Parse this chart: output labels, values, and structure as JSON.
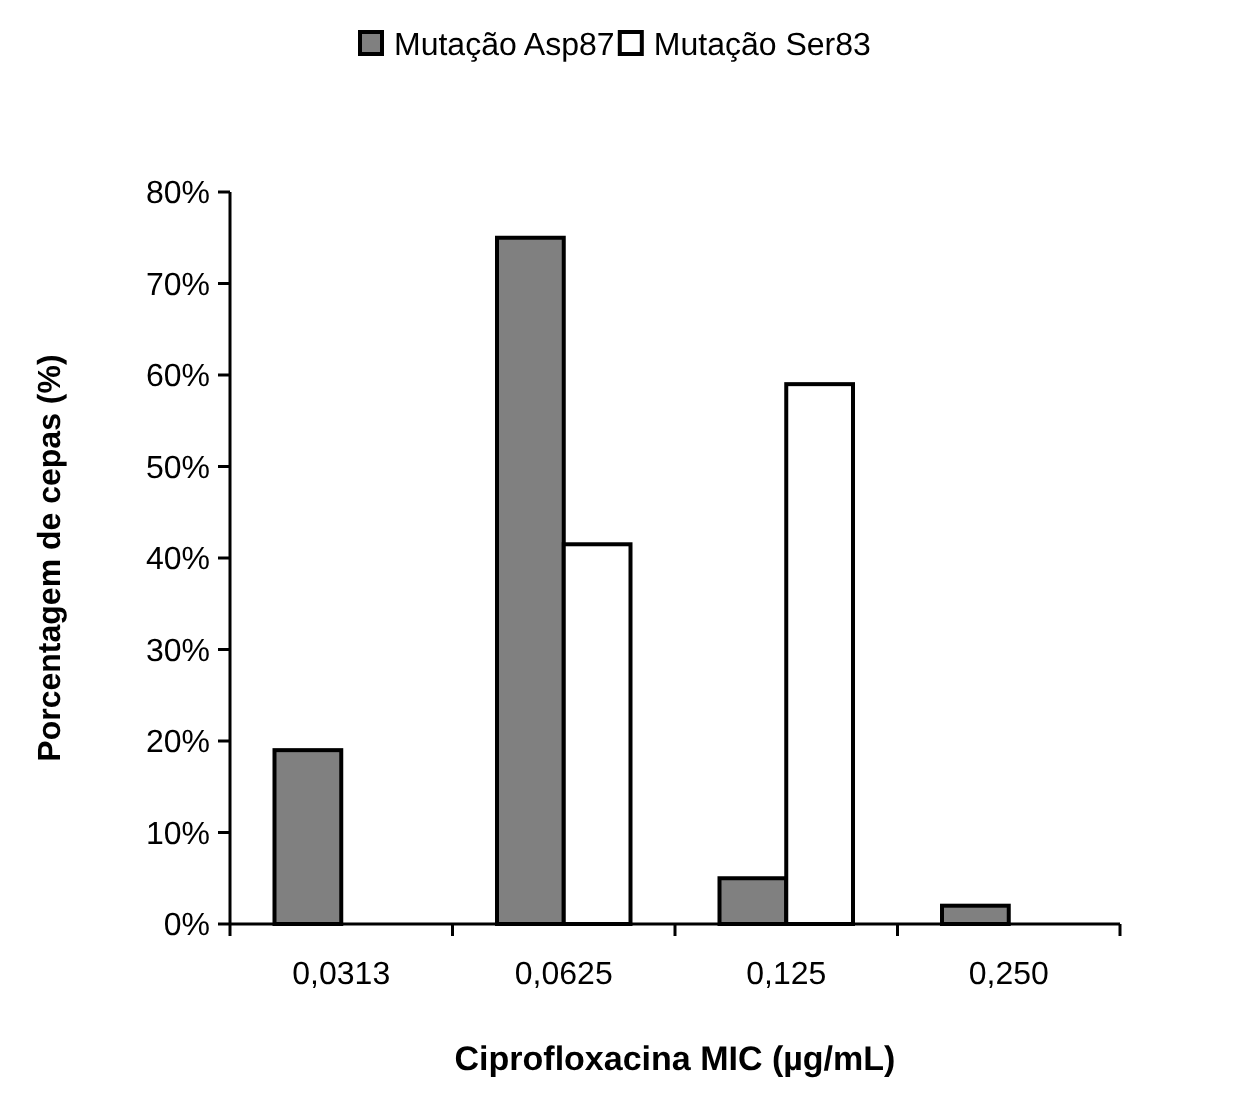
{
  "chart_data": {
    "type": "bar",
    "xlabel": "Ciprofloxacina MIC (µg/mL)",
    "ylabel": "Porcentagem de cepas (%)",
    "categories": [
      "0,0313",
      "0,0625",
      "0,125",
      "0,250"
    ],
    "series": [
      {
        "name": "Mutação Asp87",
        "color": "#808080",
        "values": [
          19,
          75,
          5,
          2
        ]
      },
      {
        "name": "Mutação Ser83",
        "color": "#ffffff",
        "values": [
          null,
          41.5,
          59,
          null
        ]
      }
    ],
    "ylim": [
      0,
      80
    ],
    "yticks": [
      {
        "value": 0,
        "label": "0%"
      },
      {
        "value": 10,
        "label": "10%"
      },
      {
        "value": 20,
        "label": "20%"
      },
      {
        "value": 30,
        "label": "30%"
      },
      {
        "value": 40,
        "label": "40%"
      },
      {
        "value": 50,
        "label": "50%"
      },
      {
        "value": 60,
        "label": "60%"
      },
      {
        "value": 70,
        "label": "70%"
      },
      {
        "value": 80,
        "label": "80%"
      }
    ],
    "grid": false,
    "legend": "top"
  }
}
